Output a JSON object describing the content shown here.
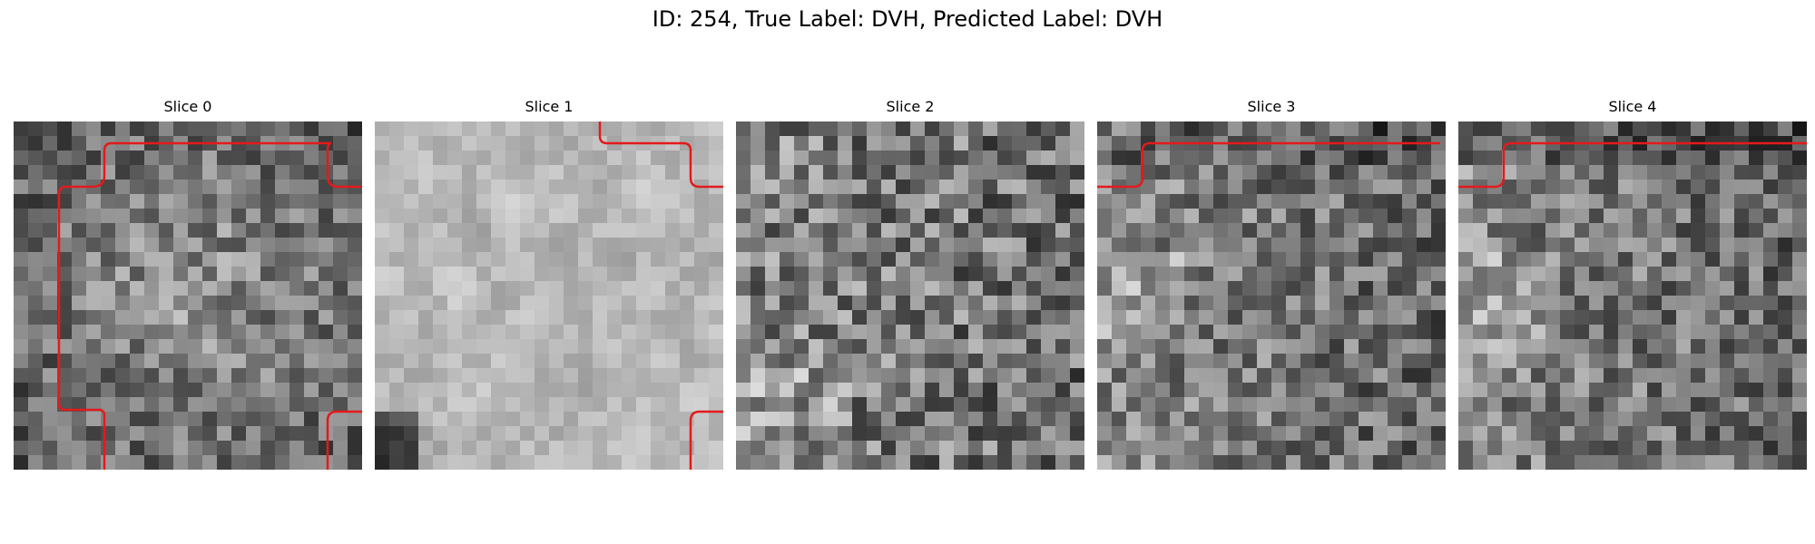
{
  "figure": {
    "title": "ID: 254, True Label: DVH, Predicted Label: DVH"
  },
  "overlay": {
    "contour_color": "#e31a1c"
  },
  "slices": [
    {
      "title": "Slice 0",
      "tone": "mid-bright-center",
      "seed": 11
    },
    {
      "title": "Slice 1",
      "tone": "bright-smooth",
      "seed": 23
    },
    {
      "title": "Slice 2",
      "tone": "mid-noisy",
      "seed": 37
    },
    {
      "title": "Slice 3",
      "tone": "mid-dark-right",
      "seed": 41
    },
    {
      "title": "Slice 4",
      "tone": "mid-dark-right",
      "seed": 53
    }
  ]
}
